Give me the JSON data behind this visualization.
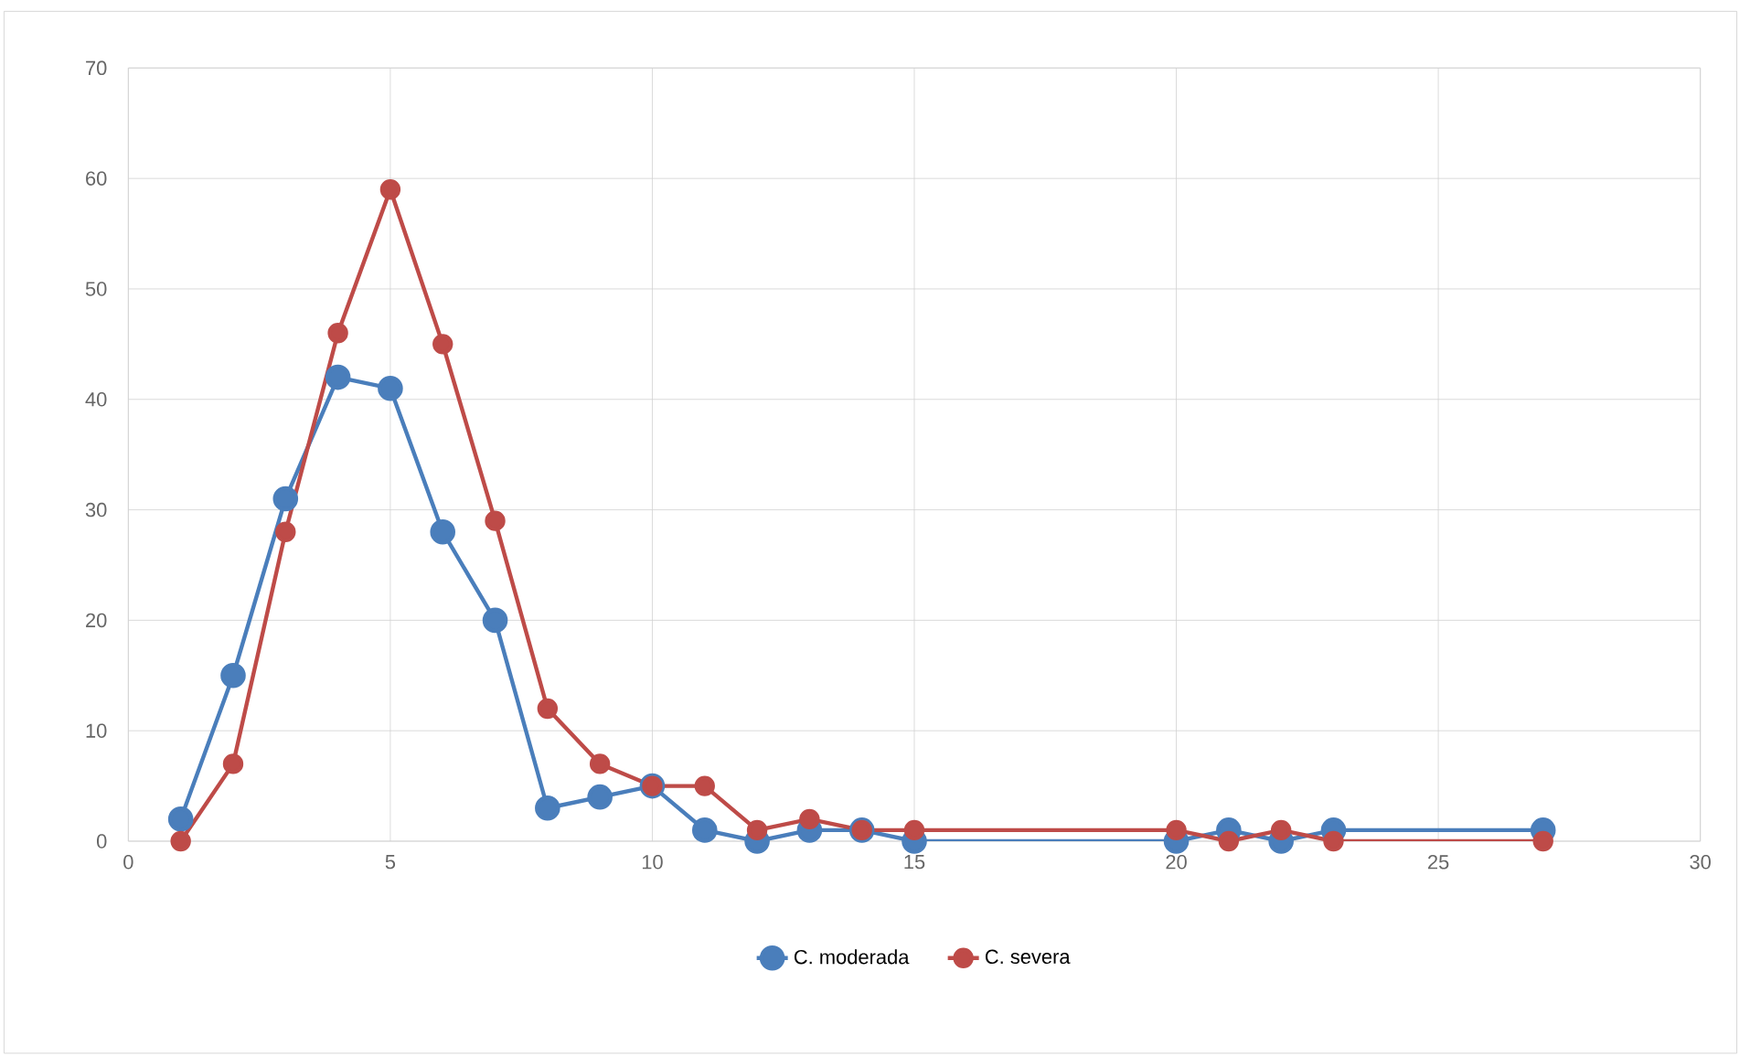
{
  "chart_data": {
    "type": "line",
    "xlim": [
      0,
      30
    ],
    "xticks": [
      0,
      5,
      10,
      15,
      20,
      25,
      30
    ],
    "ylim": [
      0,
      70
    ],
    "yticks": [
      0,
      10,
      20,
      30,
      40,
      50,
      60,
      70
    ],
    "grid": true,
    "legend": "bottom",
    "marker": "circle",
    "line_style": "solid",
    "series": [
      {
        "name": "C. moderada",
        "color": "#4a7ebb",
        "x": [
          1,
          2,
          3,
          4,
          5,
          6,
          7,
          8,
          9,
          10,
          11,
          12,
          13,
          14,
          15,
          20,
          21,
          22,
          23,
          27
        ],
        "values": [
          2,
          15,
          31,
          42,
          41,
          28,
          20,
          3,
          4,
          5,
          1,
          0,
          1,
          1,
          0,
          0,
          1,
          0,
          1,
          1
        ]
      },
      {
        "name": "C. severa",
        "color": "#be4b48",
        "x": [
          1,
          2,
          3,
          4,
          5,
          6,
          7,
          8,
          9,
          10,
          11,
          12,
          13,
          14,
          15,
          20,
          21,
          22,
          23,
          27
        ],
        "values": [
          0,
          7,
          28,
          46,
          59,
          45,
          29,
          12,
          7,
          5,
          5,
          1,
          2,
          1,
          1,
          1,
          0,
          1,
          0,
          0
        ]
      }
    ]
  }
}
